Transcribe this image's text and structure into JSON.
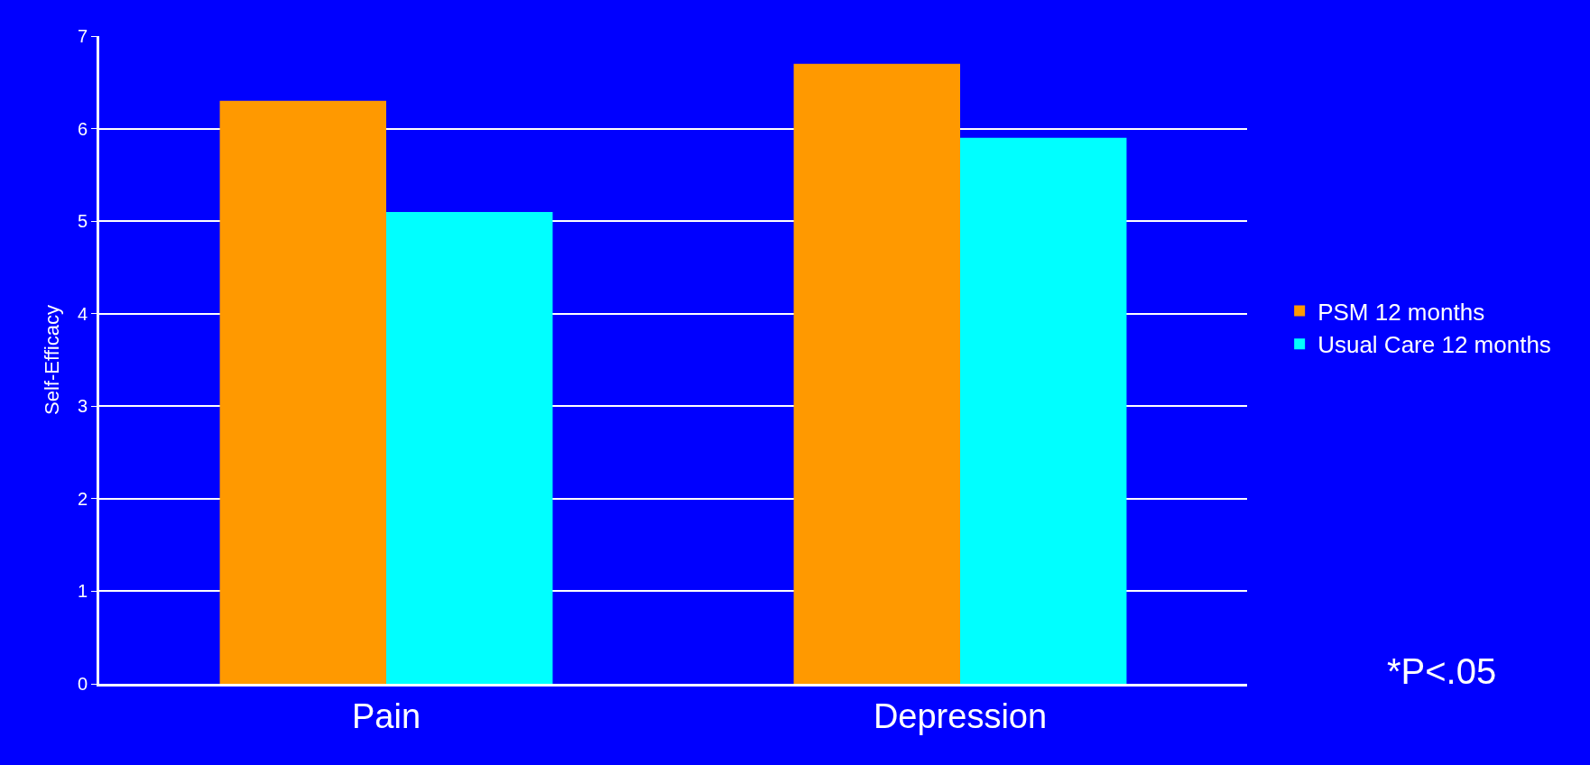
{
  "chart_data": {
    "type": "bar",
    "ylabel": "Self-Efficacy",
    "categories": [
      "Pain",
      "Depression"
    ],
    "series": [
      {
        "name": "PSM 12 months",
        "color": "#ff9900",
        "values": [
          6.3,
          6.7
        ]
      },
      {
        "name": "Usual Care 12 months",
        "color": "#00ffff",
        "values": [
          5.1,
          5.9
        ]
      }
    ],
    "ylim": [
      0,
      7
    ],
    "yticks": [
      0,
      1,
      2,
      3,
      4,
      5,
      6,
      7
    ],
    "grid": "y",
    "legend": "right",
    "annotations": [
      "*P<.05"
    ]
  }
}
